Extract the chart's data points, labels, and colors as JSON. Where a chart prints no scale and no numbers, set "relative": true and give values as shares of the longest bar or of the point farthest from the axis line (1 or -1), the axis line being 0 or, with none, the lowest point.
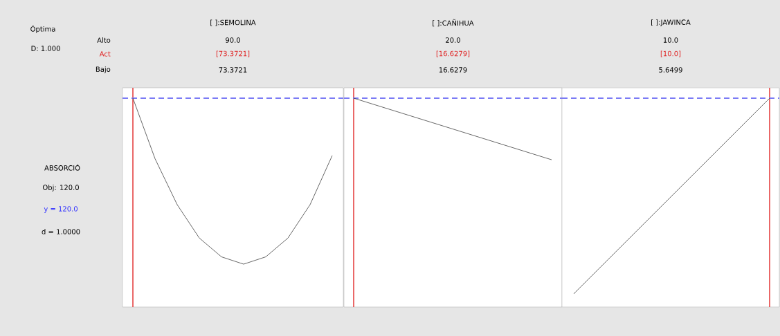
{
  "chart_data": [
    {
      "type": "other",
      "annotations": [
        "Óptima",
        "D: 1.000",
        "Alto",
        "Act",
        "Bajo",
        "ABSORCIÓ",
        "Obj: 120.0",
        "y = 120.0",
        "d = 1.0000"
      ]
    },
    {
      "type": "line",
      "title": "[ ]:SEMOLINA",
      "annotations": [
        "90.0",
        "[73.3721]",
        "73.3721"
      ],
      "relative": true,
      "tick_labels": false,
      "categories": [
        null,
        null,
        null,
        null,
        null,
        null,
        null,
        null,
        null,
        null
      ],
      "series": [
        {
          "color": "#404040",
          "values": [
            1,
            0.71,
            0.49,
            0.33,
            0.24,
            0.205,
            0.24,
            0.33,
            0.49,
            0.725
          ]
        }
      ],
      "ref_lines": [
        {
          "axis": "y",
          "value": 1,
          "color": "#7b7bf5",
          "line_style": "dashed"
        }
      ]
    },
    {
      "type": "line",
      "title": "[ ]:CAÑIHUA",
      "annotations": [
        "20.0",
        "[16.6279]",
        "16.6279"
      ],
      "relative": true,
      "tick_labels": false,
      "categories": [
        null,
        null
      ],
      "series": [
        {
          "color": "#404040",
          "values": [
            1,
            0.705
          ]
        }
      ],
      "ref_lines": [
        {
          "axis": "y",
          "value": 1,
          "color": "#7b7bf5",
          "line_style": "dashed"
        }
      ]
    },
    {
      "type": "line",
      "title": "[ ]:JAWINCA",
      "annotations": [
        "10.0",
        "[10.0]",
        "5.6499"
      ],
      "relative": true,
      "tick_labels": false,
      "categories": [
        null,
        null
      ],
      "series": [
        {
          "color": "#404040",
          "values": [
            0.063,
            1
          ]
        }
      ],
      "ref_lines": [
        {
          "axis": "y",
          "value": 1,
          "color": "#7b7bf5",
          "line_style": "dashed"
        }
      ]
    }
  ]
}
